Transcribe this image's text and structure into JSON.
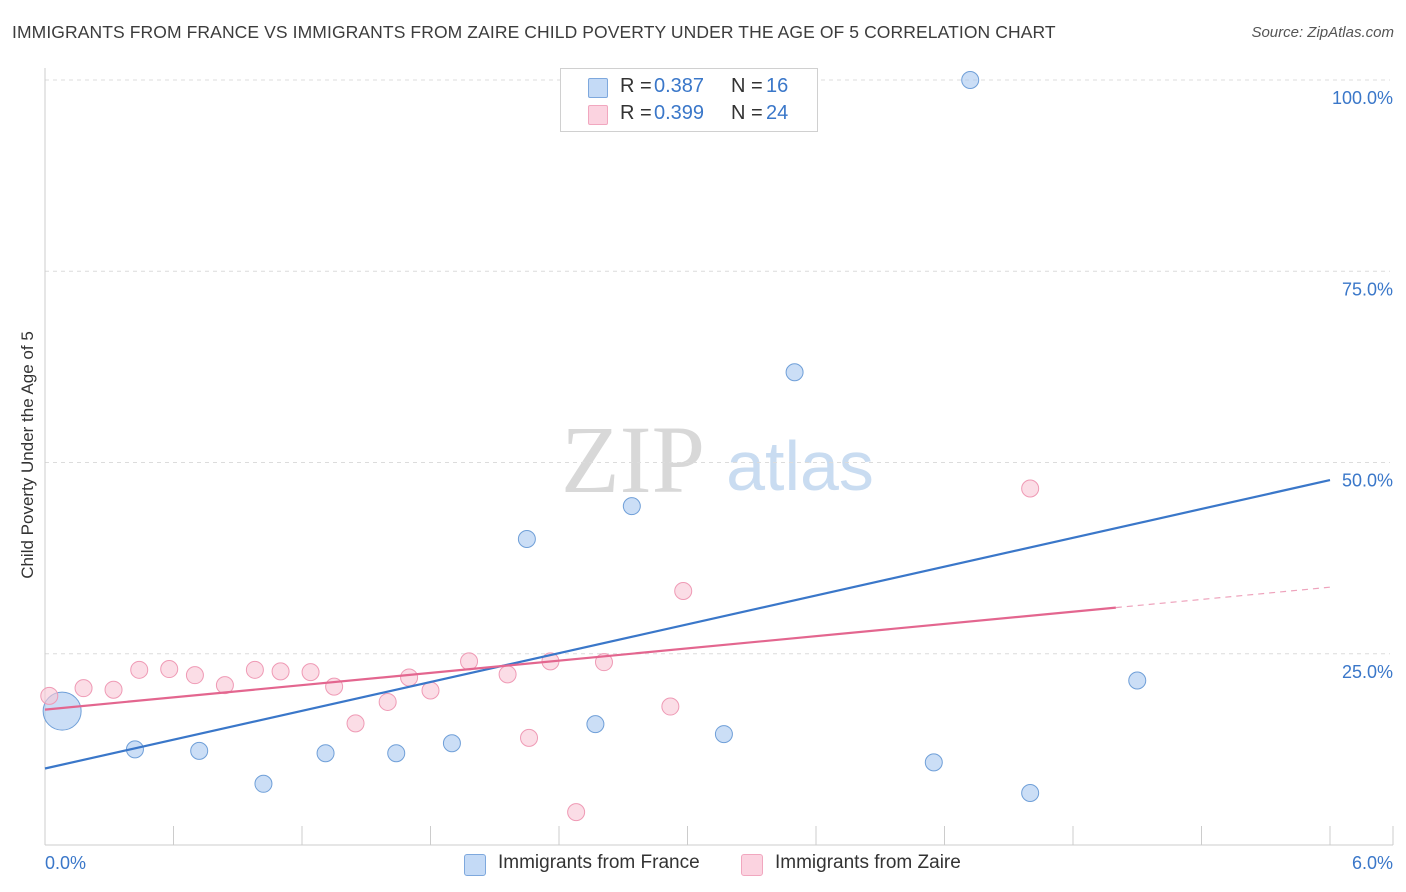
{
  "chart_data": {
    "type": "scatter",
    "title": "IMMIGRANTS FROM FRANCE VS IMMIGRANTS FROM ZAIRE CHILD POVERTY UNDER THE AGE OF 5 CORRELATION CHART",
    "source": "Source: ZipAtlas.com",
    "xlabel": "",
    "ylabel": "Child Poverty Under the Age of 5",
    "xlim": [
      0,
      6
    ],
    "ylim": [
      0,
      100
    ],
    "x_tick_labels": {
      "min": "0.0%",
      "max": "6.0%"
    },
    "y_ticks": [
      {
        "value": 100,
        "label": "100.0%"
      },
      {
        "value": 75,
        "label": "75.0%"
      },
      {
        "value": 50,
        "label": "50.0%"
      },
      {
        "value": 25,
        "label": "25.0%"
      }
    ],
    "watermark": {
      "zip": "ZIP",
      "atlas": "atlas"
    },
    "series": [
      {
        "name": "Immigrants from France",
        "color": "#a9c8f0",
        "stroke": "#6f9fd8",
        "line_color": "#3a77c9",
        "R": "0.387",
        "N": "16",
        "points": [
          {
            "x": 0.08,
            "y": 17.5,
            "big": true
          },
          {
            "x": 0.42,
            "y": 12.5
          },
          {
            "x": 0.72,
            "y": 12.3
          },
          {
            "x": 1.02,
            "y": 8.0
          },
          {
            "x": 1.31,
            "y": 12.0
          },
          {
            "x": 1.64,
            "y": 12.0
          },
          {
            "x": 1.9,
            "y": 13.3
          },
          {
            "x": 2.25,
            "y": 40.0
          },
          {
            "x": 2.57,
            "y": 15.8
          },
          {
            "x": 2.74,
            "y": 44.3
          },
          {
            "x": 3.17,
            "y": 14.5
          },
          {
            "x": 3.5,
            "y": 61.8
          },
          {
            "x": 4.32,
            "y": 100.0
          },
          {
            "x": 4.15,
            "y": 10.8
          },
          {
            "x": 4.6,
            "y": 6.8
          },
          {
            "x": 5.1,
            "y": 21.5
          }
        ],
        "trend": {
          "x0": 0.0,
          "y0": 10.0,
          "x1": 6.0,
          "y1": 47.7,
          "solid_until": 6.0
        }
      },
      {
        "name": "Immigrants from Zaire",
        "color": "#f9c7d6",
        "stroke": "#ef9ab5",
        "line_color": "#e3668f",
        "R": "0.399",
        "N": "24",
        "points": [
          {
            "x": 0.02,
            "y": 19.5
          },
          {
            "x": 0.18,
            "y": 20.5
          },
          {
            "x": 0.32,
            "y": 20.3
          },
          {
            "x": 0.44,
            "y": 22.9
          },
          {
            "x": 0.58,
            "y": 23.0
          },
          {
            "x": 0.7,
            "y": 22.2
          },
          {
            "x": 0.84,
            "y": 20.9
          },
          {
            "x": 0.98,
            "y": 22.9
          },
          {
            "x": 1.1,
            "y": 22.7
          },
          {
            "x": 1.24,
            "y": 22.6
          },
          {
            "x": 1.35,
            "y": 20.7
          },
          {
            "x": 1.45,
            "y": 15.9
          },
          {
            "x": 1.6,
            "y": 18.7
          },
          {
            "x": 1.7,
            "y": 21.9
          },
          {
            "x": 1.8,
            "y": 20.2
          },
          {
            "x": 1.98,
            "y": 24.0
          },
          {
            "x": 2.16,
            "y": 22.3
          },
          {
            "x": 2.36,
            "y": 24.0
          },
          {
            "x": 2.26,
            "y": 14.0
          },
          {
            "x": 2.48,
            "y": 4.3
          },
          {
            "x": 2.61,
            "y": 23.9
          },
          {
            "x": 2.98,
            "y": 33.2
          },
          {
            "x": 2.92,
            "y": 18.1
          },
          {
            "x": 4.6,
            "y": 46.6
          }
        ],
        "trend": {
          "x0": 0.0,
          "y0": 17.7,
          "x1": 6.0,
          "y1": 33.7,
          "solid_until": 5.0
        }
      }
    ]
  }
}
